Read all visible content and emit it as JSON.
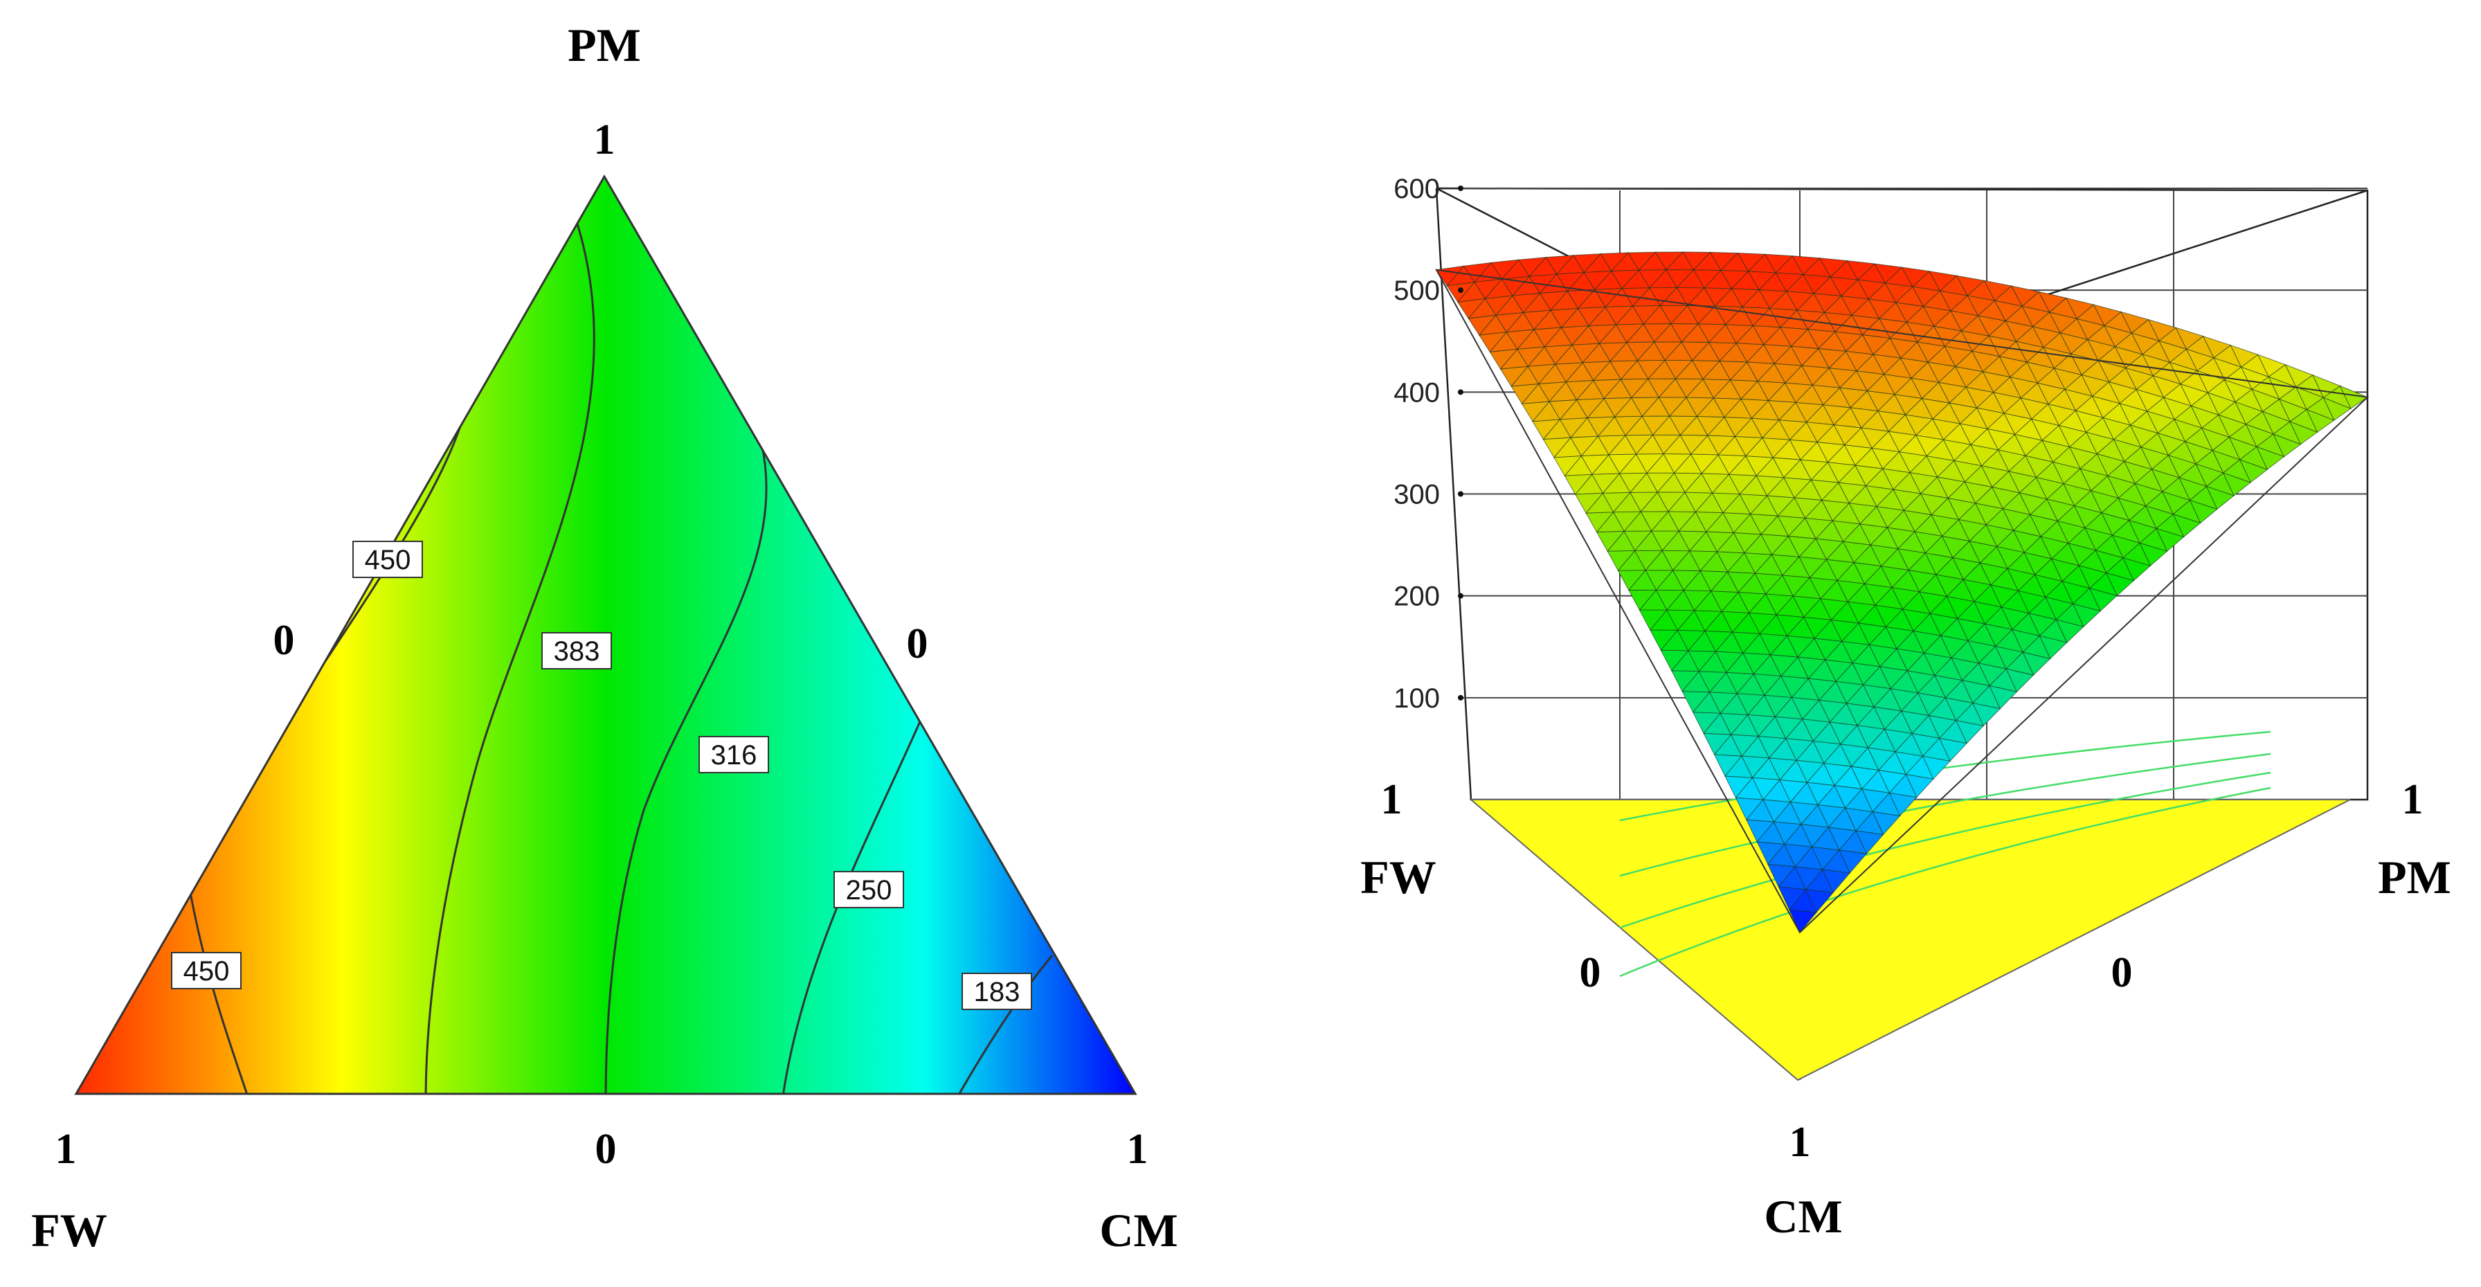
{
  "chart_data": [
    {
      "type": "ternary-contour",
      "title": "",
      "vertices": {
        "top": {
          "name": "PM",
          "value_label": "1"
        },
        "left": {
          "name": "FW",
          "value_label": "1"
        },
        "right": {
          "name": "CM",
          "value_label": "1"
        }
      },
      "edge_labels": {
        "left_edge": "0",
        "right_edge": "0",
        "bottom_edge": "0"
      },
      "contours": [
        {
          "level": "450",
          "note": "near FW-PM edge, upper"
        },
        {
          "level": "450",
          "note": "near FW corner"
        },
        {
          "level": "383"
        },
        {
          "level": "316"
        },
        {
          "level": "250"
        },
        {
          "level": "183"
        }
      ],
      "colorscale": [
        "#ff2a00",
        "#ffff00",
        "#00e800",
        "#00ffee",
        "#0000ff"
      ]
    },
    {
      "type": "surface-3d",
      "title": "",
      "z_ticks": [
        "100",
        "200",
        "300",
        "400",
        "500",
        "600"
      ],
      "zlim": [
        0,
        600
      ],
      "vertices": {
        "left": {
          "name": "FW",
          "value_label": "1",
          "z": 520
        },
        "right": {
          "name": "PM",
          "value_label": "1",
          "z": 395
        },
        "front": {
          "name": "CM",
          "value_label": "1",
          "z": 155
        }
      },
      "edge_labels": {
        "left_edge": "0",
        "right_edge": "0"
      },
      "colorscale": [
        "#0000ff",
        "#00ffff",
        "#00ff00",
        "#ffff00",
        "#ff0000"
      ]
    }
  ]
}
